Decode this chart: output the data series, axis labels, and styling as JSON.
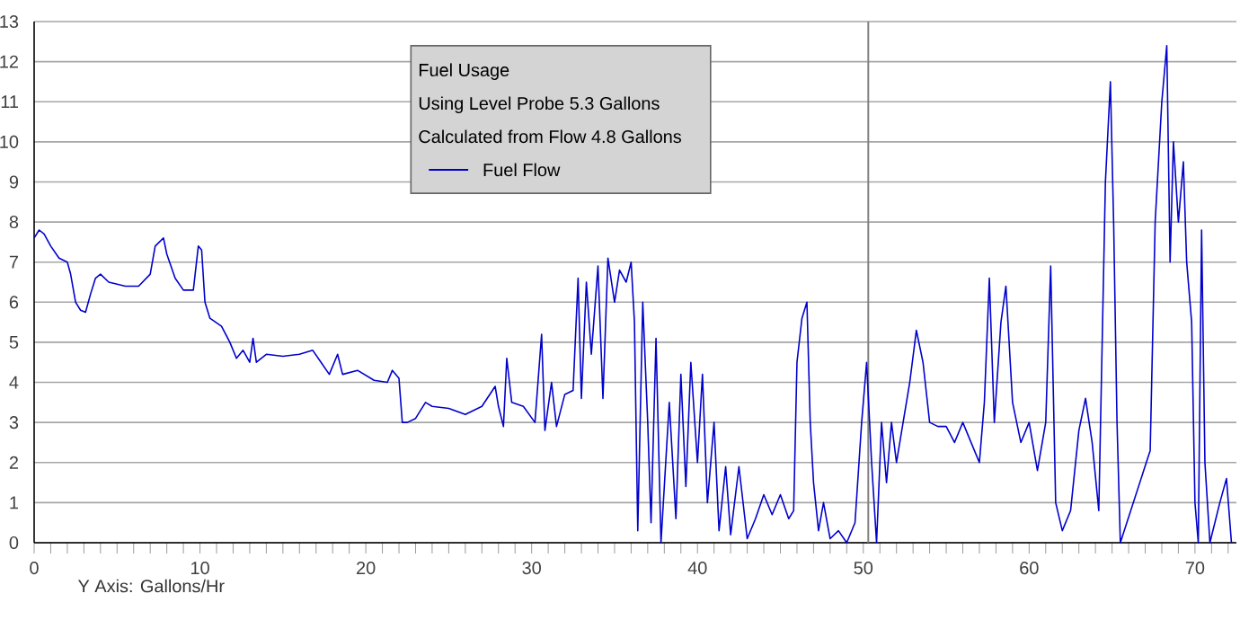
{
  "chart_data": {
    "type": "line",
    "legend_title": "Fuel Usage",
    "annotations": [
      "Y Axis: Gallons/Hr",
      "Using  Level Probe 5.3 Gallons",
      "Calculated from Flow 4.8 Gallons"
    ],
    "xlim": [
      0,
      72.5
    ],
    "ylim": [
      0,
      13
    ],
    "xticks": [
      0,
      {
        "value": 1,
        "label": null
      },
      {
        "value": 2,
        "label": null
      },
      {
        "value": 3,
        "label": null
      },
      {
        "value": 4,
        "label": null
      },
      {
        "value": 5,
        "label": null
      },
      {
        "value": 6,
        "label": null
      },
      {
        "value": 7,
        "label": null
      },
      {
        "value": 8,
        "label": null
      },
      {
        "value": 9,
        "label": null
      },
      10,
      {
        "value": 11,
        "label": null
      },
      {
        "value": 12,
        "label": null
      },
      {
        "value": 13,
        "label": null
      },
      {
        "value": 14,
        "label": null
      },
      {
        "value": 15,
        "label": null
      },
      {
        "value": 16,
        "label": null
      },
      {
        "value": 17,
        "label": null
      },
      {
        "value": 18,
        "label": null
      },
      {
        "value": 19,
        "label": null
      },
      20,
      {
        "value": 21,
        "label": null
      },
      {
        "value": 22,
        "label": null
      },
      {
        "value": 23,
        "label": null
      },
      {
        "value": 24,
        "label": null
      },
      {
        "value": 25,
        "label": null
      },
      {
        "value": 26,
        "label": null
      },
      {
        "value": 27,
        "label": null
      },
      {
        "value": 28,
        "label": null
      },
      {
        "value": 29,
        "label": null
      },
      30,
      {
        "value": 31,
        "label": null
      },
      {
        "value": 32,
        "label": null
      },
      {
        "value": 33,
        "label": null
      },
      {
        "value": 34,
        "label": null
      },
      {
        "value": 35,
        "label": null
      },
      {
        "value": 36,
        "label": null
      },
      {
        "value": 37,
        "label": null
      },
      {
        "value": 38,
        "label": null
      },
      {
        "value": 39,
        "label": null
      },
      40,
      {
        "value": 41,
        "label": null
      },
      {
        "value": 42,
        "label": null
      },
      {
        "value": 43,
        "label": null
      },
      {
        "value": 44,
        "label": null
      },
      {
        "value": 45,
        "label": null
      },
      {
        "value": 46,
        "label": null
      },
      {
        "value": 47,
        "label": null
      },
      {
        "value": 48,
        "label": null
      },
      {
        "value": 49,
        "label": null
      },
      50,
      {
        "value": 51,
        "label": null
      },
      {
        "value": 52,
        "label": null
      },
      {
        "value": 53,
        "label": null
      },
      {
        "value": 54,
        "label": null
      },
      {
        "value": 55,
        "label": null
      },
      {
        "value": 56,
        "label": null
      },
      {
        "value": 57,
        "label": null
      },
      {
        "value": 58,
        "label": null
      },
      {
        "value": 59,
        "label": null
      },
      60,
      {
        "value": 61,
        "label": null
      },
      {
        "value": 62,
        "label": null
      },
      {
        "value": 63,
        "label": null
      },
      {
        "value": 64,
        "label": null
      },
      {
        "value": 65,
        "label": null
      },
      {
        "value": 66,
        "label": null
      },
      {
        "value": 67,
        "label": null
      },
      {
        "value": 68,
        "label": null
      },
      {
        "value": 69,
        "label": null
      },
      70,
      {
        "value": 71,
        "label": null
      },
      {
        "value": 72,
        "label": null
      }
    ],
    "yticks": [
      0,
      1,
      2,
      3,
      4,
      5,
      6,
      7,
      8,
      9,
      10,
      11,
      12,
      13
    ],
    "grid": "y",
    "legend": "top",
    "ref_lines": [
      {
        "axis": "x",
        "value": 50.3,
        "color": "#808080"
      }
    ],
    "series": [
      {
        "name": "Fuel Flow",
        "color": "#0000cc",
        "x": [
          0,
          0.3,
          0.6,
          1.0,
          1.5,
          2.0,
          2.2,
          2.5,
          2.8,
          3.1,
          3.4,
          3.7,
          4.0,
          4.5,
          5.5,
          6.3,
          7.0,
          7.3,
          7.8,
          8.0,
          8.5,
          9.0,
          9.6,
          9.9,
          10.1,
          10.3,
          10.6,
          11.3,
          11.8,
          12.2,
          12.6,
          13.0,
          13.2,
          13.4,
          14,
          15,
          16,
          16.8,
          17.3,
          17.8,
          18.3,
          18.6,
          19.5,
          20.5,
          21.3,
          21.6,
          22.0,
          22.2,
          22.5,
          23,
          23.6,
          24,
          25,
          26,
          27,
          27.8,
          28,
          28.3,
          28.5,
          28.8,
          29.5,
          30.2,
          30.6,
          30.8,
          31.2,
          31.5,
          32,
          32.5,
          32.8,
          33.0,
          33.3,
          33.6,
          34.0,
          34.3,
          34.6,
          35.0,
          35.3,
          35.7,
          36.0,
          36.2,
          36.4,
          36.7,
          37.0,
          37.2,
          37.5,
          37.8,
          38.3,
          38.7,
          39.0,
          39.3,
          39.6,
          40,
          40.3,
          40.6,
          41,
          41.3,
          41.7,
          42,
          42.5,
          43,
          43.5,
          44,
          44.5,
          45,
          45.5,
          45.8,
          46.0,
          46.3,
          46.6,
          46.8,
          47.0,
          47.3,
          47.6,
          48.0,
          48.5,
          49.0,
          49.5,
          49.9,
          50.2,
          50.5,
          50.8,
          51.1,
          51.4,
          51.7,
          52,
          52.4,
          52.8,
          53.2,
          53.6,
          54,
          54.5,
          55,
          55.5,
          56,
          56.5,
          57,
          57.3,
          57.6,
          57.9,
          58.3,
          58.6,
          59,
          59.5,
          60,
          60.5,
          61,
          61.3,
          61.6,
          62,
          62.5,
          63,
          63.4,
          63.8,
          64.2,
          64.6,
          64.9,
          65.1,
          65.3,
          65.5,
          67.3,
          67.6,
          68.0,
          68.3,
          68.5,
          68.7,
          69.0,
          69.3,
          69.5,
          69.8,
          70.0,
          70.2,
          70.4,
          70.6,
          70.9,
          71.5,
          71.9,
          72.2
        ],
        "values": [
          7.6,
          7.8,
          7.7,
          7.4,
          7.1,
          7.0,
          6.7,
          6.0,
          5.8,
          5.75,
          6.2,
          6.6,
          6.7,
          6.5,
          6.4,
          6.4,
          6.7,
          7.4,
          7.6,
          7.2,
          6.6,
          6.3,
          6.3,
          7.4,
          7.3,
          6.0,
          5.6,
          5.4,
          5.0,
          4.6,
          4.8,
          4.5,
          5.1,
          4.5,
          4.7,
          4.65,
          4.7,
          4.8,
          4.5,
          4.2,
          4.7,
          4.2,
          4.3,
          4.05,
          4.0,
          4.3,
          4.1,
          3.0,
          3.0,
          3.1,
          3.5,
          3.4,
          3.35,
          3.2,
          3.4,
          3.9,
          3.4,
          2.9,
          4.6,
          3.5,
          3.4,
          3.0,
          5.2,
          2.8,
          4.0,
          2.9,
          3.7,
          3.8,
          6.6,
          3.6,
          6.5,
          4.7,
          6.9,
          3.6,
          7.1,
          6.0,
          6.8,
          6.5,
          7.0,
          5.5,
          0.3,
          6.0,
          3.0,
          0.5,
          5.1,
          0.0,
          3.5,
          0.6,
          4.2,
          1.4,
          4.5,
          2.0,
          4.2,
          1.0,
          3.0,
          0.3,
          1.9,
          0.2,
          1.9,
          0.1,
          0.6,
          1.2,
          0.7,
          1.2,
          0.6,
          0.8,
          4.5,
          5.6,
          6.0,
          3.0,
          1.5,
          0.3,
          1.0,
          0.1,
          0.3,
          0.0,
          0.5,
          3.0,
          4.5,
          2.0,
          0.0,
          3.0,
          1.5,
          3.0,
          2.0,
          3.0,
          4.0,
          5.3,
          4.5,
          3.0,
          2.9,
          2.9,
          2.5,
          3.0,
          2.5,
          2.0,
          3.5,
          6.6,
          3.0,
          5.5,
          6.4,
          3.5,
          2.5,
          3.0,
          1.8,
          3.0,
          6.9,
          1.0,
          0.3,
          0.8,
          2.8,
          3.6,
          2.5,
          0.8,
          9.0,
          11.5,
          7.9,
          3.0,
          0.0,
          2.3,
          8.0,
          11.0,
          12.4,
          7.0,
          10.0,
          8.0,
          9.5,
          7.0,
          5.5,
          1.0,
          0.0,
          7.8,
          2.0,
          0.0,
          1.0,
          1.6,
          0.0
        ]
      }
    ]
  }
}
